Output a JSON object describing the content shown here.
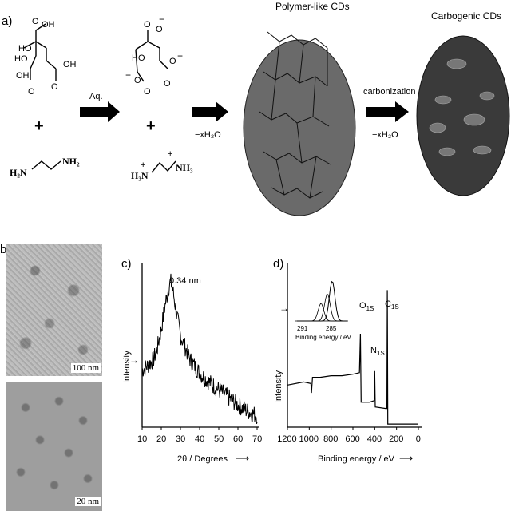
{
  "panel_a": {
    "label": "a)",
    "reactant1_groups": [
      "OH",
      "OH",
      "HO",
      "O",
      "OH",
      "O",
      "HO",
      "O"
    ],
    "reactant2": "NH₂",
    "reactant2_left": "H₂N",
    "plus": "+",
    "ion_groups": [
      "O",
      "O",
      "HO",
      "O",
      "O",
      "O",
      "O"
    ],
    "ion_charges": [
      "−",
      "−",
      "−"
    ],
    "ammonium_left": "H₃N",
    "ammonium_right": "NH₃",
    "ammonium_charge": "+",
    "step1_label": "Aq.",
    "step2_label": "−xH₂O",
    "step3_top": "carbonization",
    "step3_bottom": "−xH₂O",
    "polymer_title": "Polymer-like CDs",
    "carbogenic_title": "Carbogenic CDs"
  },
  "panel_b": {
    "label": "b)",
    "scale_top": "100 nm",
    "scale_bottom": "20 nm"
  },
  "panel_c": {
    "label": "c)",
    "peak_label": "0.34 nm",
    "ylabel": "Intensity",
    "xlabel": "2θ / Degrees",
    "xticks": [
      "10",
      "20",
      "30",
      "40",
      "50",
      "60",
      "70"
    ]
  },
  "panel_d": {
    "label": "d)",
    "ylabel": "Intensity",
    "xlabel": "Binding energy / eV",
    "xticks": [
      "1200",
      "1000",
      "800",
      "600",
      "400",
      "200",
      "0"
    ],
    "peak_o": "O",
    "peak_o_sub": "1S",
    "peak_n": "N",
    "peak_n_sub": "1S",
    "peak_c": "C",
    "peak_c_sub": "1S",
    "inset_xticks": [
      "291",
      "285"
    ],
    "inset_xlabel": "Binding energy / eV"
  },
  "chart_data": [
    {
      "type": "line",
      "xlim": [
        10,
        70
      ],
      "xticks": [
        10,
        20,
        30,
        40,
        50,
        60,
        70
      ],
      "peak_x": 25,
      "x": [
        10,
        13,
        16,
        18,
        20,
        22,
        24,
        25,
        26,
        28,
        30,
        35,
        40,
        45,
        50,
        55,
        60,
        65,
        70
      ],
      "y_rel": [
        0.35,
        0.38,
        0.42,
        0.5,
        0.62,
        0.78,
        0.9,
        0.93,
        0.88,
        0.72,
        0.58,
        0.42,
        0.33,
        0.27,
        0.22,
        0.17,
        0.12,
        0.08,
        0.05
      ],
      "xlabel": "2θ / Degrees",
      "ylabel": "Intensity",
      "annotations": [
        "0.34 nm"
      ]
    },
    {
      "type": "line",
      "xlim": [
        1200,
        0
      ],
      "xticks": [
        1200,
        1000,
        800,
        600,
        400,
        200,
        0
      ],
      "peaks": [
        {
          "label": "O1S",
          "x": 531,
          "y_rel": 0.6
        },
        {
          "label": "N1S",
          "x": 400,
          "y_rel": 0.36
        },
        {
          "label": "C1S",
          "x": 285,
          "y_rel": 0.88
        }
      ],
      "xlabel": "Binding energy / eV",
      "ylabel": "Intensity",
      "inset": {
        "xticks": [
          291,
          285
        ],
        "xlabel": "Binding energy / eV"
      }
    }
  ]
}
